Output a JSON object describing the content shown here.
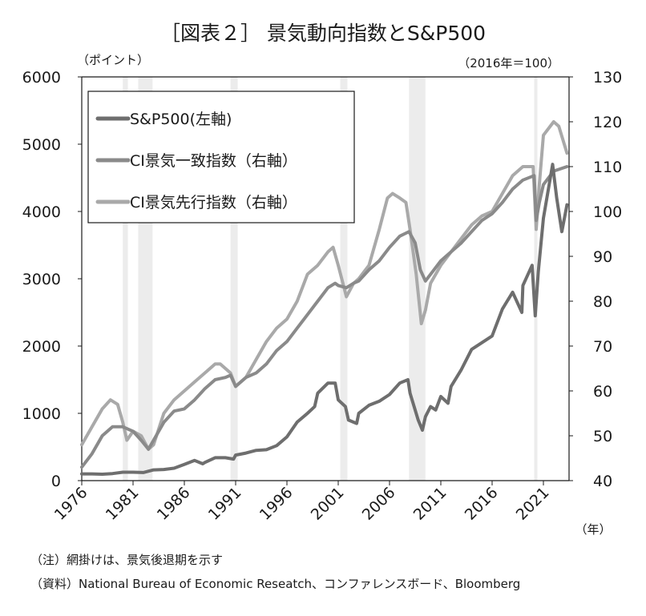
{
  "chart_data": {
    "type": "line",
    "title": "［図表２］ 景気動向指数とS&P500",
    "left_axis_unit": "（ポイント）",
    "right_axis_unit": "（2016年＝100）",
    "x_unit": "（年）",
    "left_ylim": [
      0,
      6000
    ],
    "left_yticks": [
      "0",
      "1000",
      "2000",
      "3000",
      "4000",
      "5000",
      "6000"
    ],
    "right_ylim": [
      40,
      130
    ],
    "right_yticks": [
      "40",
      "50",
      "60",
      "70",
      "80",
      "90",
      "100",
      "110",
      "120",
      "130"
    ],
    "xlim": [
      1976,
      2023.5
    ],
    "xticks": [
      "1976",
      "1981",
      "1986",
      "1991",
      "1996",
      "2001",
      "2006",
      "2011",
      "2016",
      "2021"
    ],
    "grid": false,
    "legend_placement": "top-left",
    "recessions": [
      [
        1980.0,
        1980.5
      ],
      [
        1981.5,
        1982.9
      ],
      [
        1990.5,
        1991.2
      ],
      [
        2001.2,
        2001.9
      ],
      [
        2007.9,
        2009.5
      ],
      [
        2020.1,
        2020.4
      ]
    ],
    "series": [
      {
        "name": "S&P500(左軸)",
        "axis": "left",
        "color": "#6e6e6e",
        "x": [
          1976,
          1977,
          1978,
          1979,
          1980,
          1981,
          1982,
          1983,
          1984,
          1985,
          1986,
          1987,
          1987.8,
          1988,
          1989,
          1990,
          1990.8,
          1991,
          1992,
          1993,
          1994,
          1995,
          1996,
          1997,
          1998,
          1998.7,
          1999,
          2000,
          2000.7,
          2001,
          2001.7,
          2002,
          2002.8,
          2003,
          2004,
          2005,
          2006,
          2007,
          2007.8,
          2008,
          2008.8,
          2009.2,
          2009.5,
          2010,
          2010.5,
          2011,
          2011.7,
          2012,
          2013,
          2014,
          2015,
          2016,
          2017,
          2018,
          2018.9,
          2019,
          2019.9,
          2020.2,
          2020.5,
          2021,
          2021.9,
          2022.3,
          2022.8,
          2023.3
        ],
        "y": [
          100,
          100,
          95,
          105,
          125,
          125,
          120,
          160,
          165,
          185,
          240,
          300,
          250,
          270,
          340,
          340,
          320,
          380,
          410,
          450,
          460,
          520,
          650,
          870,
          1000,
          1100,
          1300,
          1450,
          1450,
          1200,
          1100,
          900,
          850,
          1000,
          1120,
          1180,
          1280,
          1450,
          1500,
          1300,
          900,
          750,
          950,
          1100,
          1050,
          1250,
          1150,
          1400,
          1650,
          1950,
          2050,
          2150,
          2550,
          2800,
          2500,
          2900,
          3200,
          2450,
          3100,
          3900,
          4700,
          4200,
          3700,
          4100
        ]
      },
      {
        "name": "CI景気一致指数（右軸）",
        "axis": "right",
        "color": "#8a8a8a",
        "x": [
          1976,
          1977,
          1978,
          1979,
          1980,
          1981,
          1981.8,
          1982.5,
          1983,
          1984,
          1985,
          1986,
          1987,
          1988,
          1989,
          1990,
          1990.5,
          1991,
          1992,
          1993,
          1994,
          1995,
          1996,
          1997,
          1998,
          1999,
          2000,
          2000.7,
          2001,
          2001.8,
          2002.5,
          2003,
          2004,
          2005,
          2006,
          2007,
          2007.9,
          2008.5,
          2009,
          2009.5,
          2010,
          2011,
          2012,
          2013,
          2014,
          2015,
          2016,
          2017,
          2018,
          2019,
          2020.1,
          2020.3,
          2020.6,
          2021,
          2022,
          2023.3
        ],
        "y": [
          43,
          46,
          50,
          52,
          52,
          51,
          49,
          47,
          49,
          53,
          55.5,
          56,
          58,
          60.5,
          62.5,
          63,
          63.5,
          61,
          63,
          64,
          66,
          69,
          71,
          74,
          77,
          80,
          83,
          84,
          83.5,
          83,
          84,
          84.5,
          87,
          89,
          92,
          94.5,
          95.5,
          93,
          87,
          84.5,
          86,
          89,
          91,
          93,
          95.5,
          98,
          99.5,
          102,
          105,
          107,
          108,
          98,
          102,
          106,
          109,
          110
        ]
      },
      {
        "name": "CI景気先行指数（右軸）",
        "axis": "right",
        "color": "#a9a9a9",
        "x": [
          1976,
          1977,
          1978,
          1978.8,
          1979.5,
          1980,
          1980.4,
          1981,
          1981.8,
          1982.5,
          1983,
          1984,
          1985,
          1986,
          1987,
          1988,
          1989,
          1989.5,
          1990,
          1990.5,
          1991,
          1992,
          1993,
          1994,
          1995,
          1996,
          1997,
          1998,
          1999,
          2000,
          2000.5,
          2001,
          2001.8,
          2002.5,
          2003,
          2004,
          2005,
          2005.8,
          2006.3,
          2007,
          2007.6,
          2008,
          2008.6,
          2009.1,
          2009.5,
          2010,
          2011,
          2012,
          2013,
          2014,
          2015,
          2016,
          2017,
          2018,
          2019,
          2020,
          2020.3,
          2020.6,
          2021,
          2022,
          2022.5,
          2023.3
        ],
        "y": [
          48,
          52,
          56,
          58,
          57,
          53,
          49,
          51,
          50,
          47,
          48,
          55,
          58,
          60,
          62,
          64,
          66,
          66,
          65,
          64,
          61,
          63,
          67,
          71,
          74,
          76,
          80,
          86,
          88,
          91,
          92,
          88,
          81,
          84,
          85,
          88,
          96,
          103,
          104,
          103,
          102,
          96,
          86,
          75,
          78,
          84,
          88,
          91,
          94,
          97,
          99,
          100,
          104,
          108,
          110,
          110,
          96,
          106,
          117,
          120,
          119,
          113
        ]
      }
    ]
  },
  "notes": {
    "note": "（注）網掛けは、景気後退期を示す",
    "source": "（資料）National Bureau of Economic Reseatch、コンファレンスボード、Bloomberg"
  }
}
